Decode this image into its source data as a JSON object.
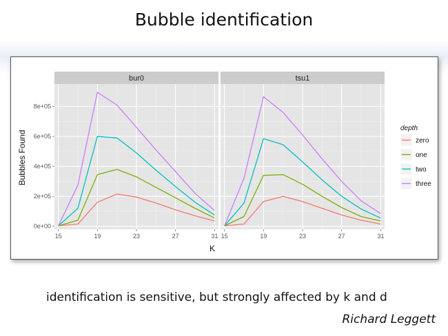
{
  "slide": {
    "title": "Bubble identification",
    "caption": "identification is sensitive, but strongly affected by k and d",
    "author": "Richard Leggett"
  },
  "chart_data": {
    "type": "line",
    "facets": [
      "bur0",
      "tsu1"
    ],
    "xlabel": "K",
    "ylabel": "Bubbles Found",
    "x_ticks": [
      15,
      19,
      23,
      27,
      31
    ],
    "y_ticks": [
      "0e+00",
      "2e+05",
      "4e+05",
      "6e+05",
      "8e+05"
    ],
    "y_tick_values": [
      0,
      200000,
      400000,
      600000,
      800000
    ],
    "xlim": [
      14.6,
      31.4
    ],
    "ylim": [
      -20000,
      950000
    ],
    "grid": true,
    "legend_title": "depth",
    "legend_position": "right",
    "series_colors": {
      "zero": "#F8766D",
      "one": "#7CAE00",
      "two": "#00BFC4",
      "three": "#C77CFF"
    },
    "x": [
      15,
      17,
      19,
      21,
      23,
      25,
      27,
      29,
      31
    ],
    "panels": [
      {
        "facet": "bur0",
        "series": [
          {
            "name": "zero",
            "values": [
              3000,
              15000,
              160000,
              215000,
              195000,
              155000,
              110000,
              70000,
              35000
            ]
          },
          {
            "name": "one",
            "values": [
              3000,
              40000,
              345000,
              380000,
              330000,
              260000,
              190000,
              120000,
              55000
            ]
          },
          {
            "name": "two",
            "values": [
              3000,
              120000,
              600000,
              590000,
              490000,
              375000,
              265000,
              160000,
              75000
            ]
          },
          {
            "name": "three",
            "values": [
              3000,
              275000,
              895000,
              810000,
              660000,
              510000,
              365000,
              220000,
              105000
            ]
          }
        ]
      },
      {
        "facet": "tsu1",
        "series": [
          {
            "name": "zero",
            "values": [
              3000,
              15000,
              165000,
              200000,
              165000,
              120000,
              75000,
              40000,
              15000
            ]
          },
          {
            "name": "one",
            "values": [
              3000,
              65000,
              340000,
              345000,
              280000,
              200000,
              125000,
              65000,
              35000
            ]
          },
          {
            "name": "two",
            "values": [
              3000,
              155000,
              585000,
              545000,
              430000,
              310000,
              200000,
              115000,
              55000
            ]
          },
          {
            "name": "three",
            "values": [
              3000,
              320000,
              865000,
              760000,
              610000,
              450000,
              300000,
              170000,
              85000
            ]
          }
        ]
      }
    ]
  }
}
